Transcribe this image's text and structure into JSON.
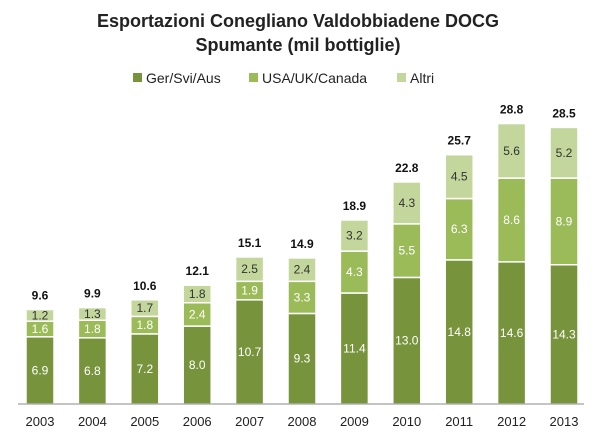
{
  "chart_data": {
    "type": "bar",
    "stacked": true,
    "title": "Esportazioni Conegliano Valdobbiadene DOCG",
    "subtitle": "Spumante (mil bottiglie)",
    "xlabel": "",
    "ylabel": "",
    "ylim": [
      0,
      30.5
    ],
    "grid": false,
    "legend_position": "top",
    "categories": [
      "2003",
      "2004",
      "2005",
      "2006",
      "2007",
      "2008",
      "2009",
      "2010",
      "2011",
      "2012",
      "2013"
    ],
    "series": [
      {
        "name": "Ger/Svi/Aus",
        "color": "#77933c",
        "label_color": "#ffffff",
        "values": [
          6.9,
          6.8,
          7.2,
          8.0,
          10.7,
          9.3,
          11.4,
          13.0,
          14.8,
          14.6,
          14.3
        ]
      },
      {
        "name": "USA/UK/Canada",
        "color": "#9bbb59",
        "label_color": "#ffffff",
        "values": [
          1.6,
          1.8,
          1.8,
          2.4,
          1.9,
          3.3,
          4.3,
          5.5,
          6.3,
          8.6,
          8.9
        ]
      },
      {
        "name": "Altri",
        "color": "#c3d69b",
        "label_color": "#333333",
        "values": [
          1.2,
          1.3,
          1.7,
          1.8,
          2.5,
          2.4,
          3.2,
          4.3,
          4.5,
          5.6,
          5.2
        ]
      }
    ],
    "totals": [
      9.6,
      9.9,
      10.6,
      12.1,
      15.1,
      14.9,
      18.9,
      22.8,
      25.7,
      28.8,
      28.5
    ]
  }
}
